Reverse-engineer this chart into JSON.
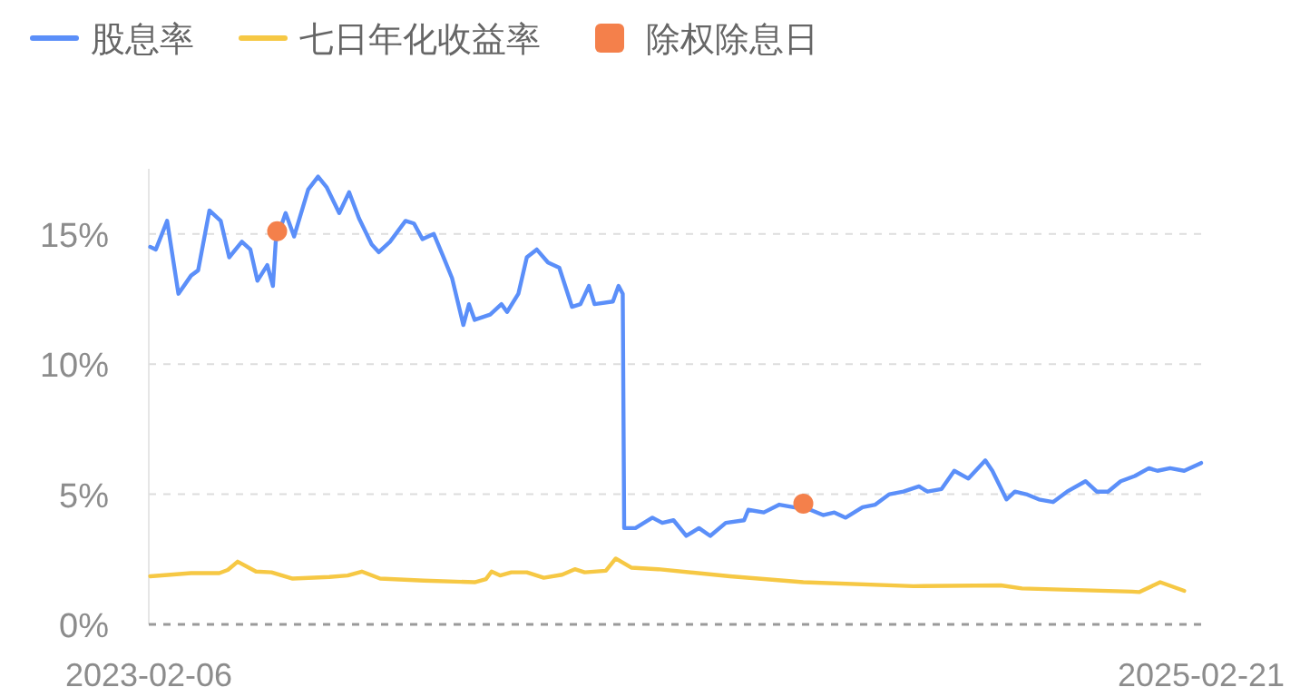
{
  "chart_data": {
    "type": "line",
    "legend": "top left",
    "grid": "y",
    "xlim": [
      "2023-02-06",
      "2025-02-21"
    ],
    "xticks": [
      {
        "value": "2023-02-06",
        "label": "2023-02-06"
      },
      {
        "value": "2025-02-21",
        "label": "2025-02-21"
      }
    ],
    "ylim": [
      0,
      17.5
    ],
    "yticks": [
      {
        "value": 0,
        "label": "0%"
      },
      {
        "value": 5,
        "label": "5%"
      },
      {
        "value": 10,
        "label": "10%"
      },
      {
        "value": 15,
        "label": "15%"
      }
    ],
    "series": [
      {
        "name": "股息率",
        "type": "line",
        "color": "#5b8ff9",
        "x": [
          "2023-02-07",
          "2023-02-11",
          "2023-02-19",
          "2023-02-27",
          "2023-03-08",
          "2023-03-13",
          "2023-03-21",
          "2023-03-29",
          "2023-04-04",
          "2023-04-13",
          "2023-04-19",
          "2023-04-24",
          "2023-05-01",
          "2023-05-05",
          "2023-05-07",
          "2023-05-14",
          "2023-05-20",
          "2023-05-30",
          "2023-06-06",
          "2023-06-12",
          "2023-06-21",
          "2023-06-28",
          "2023-07-05",
          "2023-07-14",
          "2023-07-19",
          "2023-07-27",
          "2023-08-07",
          "2023-08-13",
          "2023-08-19",
          "2023-08-27",
          "2023-09-03",
          "2023-09-09",
          "2023-09-17",
          "2023-09-21",
          "2023-09-25",
          "2023-10-06",
          "2023-10-14",
          "2023-10-18",
          "2023-10-26",
          "2023-11-01",
          "2023-11-08",
          "2023-11-16",
          "2023-11-24",
          "2023-12-03",
          "2023-12-09",
          "2023-12-15",
          "2023-12-19",
          "2024-01-01",
          "2024-01-05",
          "2024-01-08",
          "2024-01-09",
          "2024-01-17",
          "2024-01-29",
          "2024-02-05",
          "2024-02-13",
          "2024-02-22",
          "2024-03-02",
          "2024-03-10",
          "2024-03-21",
          "2024-04-03",
          "2024-04-06",
          "2024-04-17",
          "2024-04-28",
          "2024-05-08",
          "2024-05-20",
          "2024-05-29",
          "2024-06-06",
          "2024-06-14",
          "2024-06-26",
          "2024-07-05",
          "2024-07-15",
          "2024-07-25",
          "2024-08-05",
          "2024-08-11",
          "2024-08-21",
          "2024-08-30",
          "2024-09-09",
          "2024-09-21",
          "2024-09-26",
          "2024-10-06",
          "2024-10-12",
          "2024-10-20",
          "2024-10-29",
          "2024-11-08",
          "2024-11-18",
          "2024-12-01",
          "2024-12-09",
          "2024-12-17",
          "2024-12-26",
          "2025-01-05",
          "2025-01-15",
          "2025-01-21",
          "2025-01-30",
          "2025-02-09",
          "2025-02-21"
        ],
        "values": [
          14.5,
          14.4,
          15.5,
          12.7,
          13.4,
          13.6,
          15.9,
          15.5,
          14.1,
          14.7,
          14.4,
          13.2,
          13.8,
          13.0,
          14.7,
          15.8,
          14.9,
          16.7,
          17.2,
          16.8,
          15.8,
          16.6,
          15.6,
          14.6,
          14.3,
          14.7,
          15.5,
          15.4,
          14.8,
          15.0,
          14.1,
          13.3,
          11.5,
          12.3,
          11.7,
          11.9,
          12.3,
          12.0,
          12.7,
          14.1,
          14.4,
          13.9,
          13.7,
          12.2,
          12.3,
          13.0,
          12.3,
          12.4,
          13.0,
          12.7,
          3.7,
          3.7,
          4.1,
          3.9,
          4.0,
          3.4,
          3.7,
          3.4,
          3.9,
          4.0,
          4.4,
          4.3,
          4.6,
          4.5,
          4.4,
          4.2,
          4.3,
          4.1,
          4.5,
          4.6,
          5.0,
          5.1,
          5.3,
          5.1,
          5.2,
          5.9,
          5.6,
          6.3,
          5.9,
          4.8,
          5.1,
          5.0,
          4.8,
          4.7,
          5.1,
          5.5,
          5.1,
          5.1,
          5.5,
          5.7,
          6.0,
          5.9,
          6.0,
          5.9,
          6.2
        ]
      },
      {
        "name": "七日年化收益率",
        "type": "line",
        "color": "#f6c844",
        "x": [
          "2023-02-07",
          "2023-03-08",
          "2023-03-28",
          "2023-04-03",
          "2023-04-10",
          "2023-04-23",
          "2023-05-04",
          "2023-05-19",
          "2023-06-14",
          "2023-06-27",
          "2023-07-07",
          "2023-07-20",
          "2023-08-20",
          "2023-09-25",
          "2023-10-03",
          "2023-10-07",
          "2023-10-13",
          "2023-10-21",
          "2023-11-01",
          "2023-11-13",
          "2023-11-26",
          "2023-12-05",
          "2023-12-12",
          "2023-12-27",
          "2024-01-03",
          "2024-01-14",
          "2024-02-02",
          "2024-03-24",
          "2024-05-15",
          "2024-08-01",
          "2024-10-02",
          "2024-10-17",
          "2025-01-03",
          "2025-01-08",
          "2025-01-23",
          "2025-02-09"
        ],
        "values": [
          1.85,
          1.97,
          1.97,
          2.09,
          2.41,
          2.03,
          2.0,
          1.76,
          1.82,
          1.88,
          2.03,
          1.76,
          1.68,
          1.62,
          1.74,
          2.03,
          1.88,
          2.0,
          2.0,
          1.79,
          1.91,
          2.12,
          2.0,
          2.06,
          2.53,
          2.18,
          2.12,
          1.85,
          1.62,
          1.47,
          1.5,
          1.38,
          1.26,
          1.24,
          1.62,
          1.29
        ]
      },
      {
        "name": "除权除息日",
        "type": "scatter",
        "color": "#f4804b",
        "x": [
          "2023-05-08",
          "2024-05-15"
        ],
        "values": [
          15.1,
          4.64
        ]
      }
    ]
  }
}
